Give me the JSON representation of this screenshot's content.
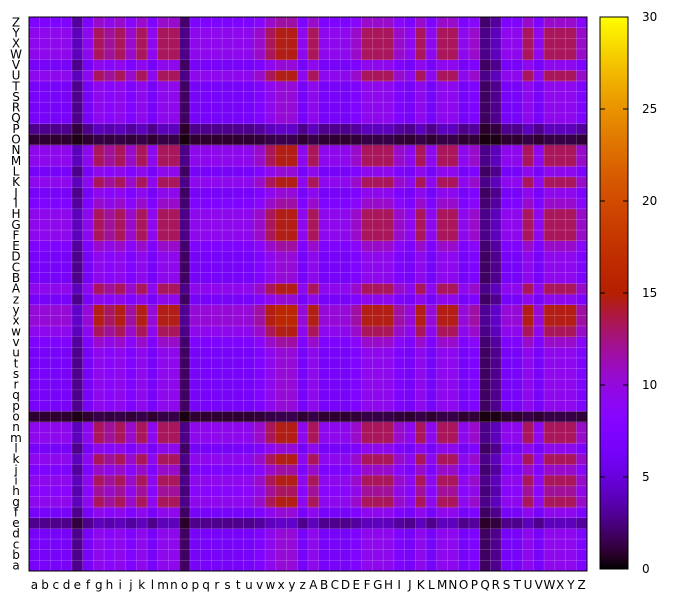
{
  "chart_data": {
    "type": "heatmap",
    "title": "",
    "xlabel": "",
    "ylabel": "",
    "x_labels": [
      "a",
      "b",
      "c",
      "d",
      "e",
      "f",
      "g",
      "h",
      "i",
      "j",
      "k",
      "l",
      "m",
      "n",
      "o",
      "p",
      "q",
      "r",
      "s",
      "t",
      "u",
      "v",
      "w",
      "x",
      "y",
      "z",
      "A",
      "B",
      "C",
      "D",
      "E",
      "F",
      "G",
      "H",
      "I",
      "J",
      "K",
      "L",
      "M",
      "N",
      "O",
      "P",
      "Q",
      "R",
      "S",
      "T",
      "U",
      "V",
      "W",
      "X",
      "Y",
      "Z"
    ],
    "y_labels": [
      "a",
      "b",
      "c",
      "d",
      "e",
      "f",
      "g",
      "h",
      "i",
      "j",
      "k",
      "l",
      "m",
      "n",
      "o",
      "p",
      "q",
      "r",
      "s",
      "t",
      "u",
      "v",
      "w",
      "x",
      "y",
      "z",
      "A",
      "B",
      "C",
      "D",
      "E",
      "F",
      "G",
      "H",
      "I",
      "J",
      "K",
      "L",
      "M",
      "N",
      "O",
      "P",
      "Q",
      "R",
      "S",
      "T",
      "U",
      "V",
      "W",
      "X",
      "Y",
      "Z"
    ],
    "column_weights": [
      7,
      7,
      7,
      7,
      3,
      7,
      10,
      9,
      10,
      8,
      10,
      7,
      10,
      10,
      2,
      7,
      7,
      7,
      7,
      7,
      7,
      8,
      10,
      11,
      11,
      7,
      10,
      7,
      7,
      7,
      8,
      10,
      10,
      10,
      8,
      7,
      10,
      7,
      10,
      10,
      7,
      8,
      2,
      3,
      7,
      7,
      10,
      7,
      10,
      10,
      10,
      8
    ],
    "row_weights": [
      7,
      7,
      7,
      7,
      3,
      7,
      10,
      9,
      10,
      8,
      10,
      7,
      10,
      10,
      1,
      7,
      7,
      7,
      7,
      7,
      7,
      8,
      10,
      11,
      11,
      7,
      10,
      7,
      7,
      7,
      8,
      10,
      10,
      10,
      8,
      7,
      10,
      7,
      10,
      10,
      1,
      3,
      7,
      7,
      7,
      7,
      10,
      7,
      10,
      10,
      10,
      8
    ],
    "values_formula": "value ≈ 6.5 × row_weight × column_weight / 49, clipped to color range",
    "cbrange": [
      0,
      30
    ],
    "colorbar_ticks": [
      0,
      5,
      10,
      15,
      20,
      25,
      30
    ],
    "colormap": "gnuplot (black-purple-red-yellow)",
    "grid": true,
    "legend": "colorbar right"
  },
  "colorbar": {
    "tick_labels": [
      "0",
      "5",
      "10",
      "15",
      "20",
      "25",
      "30"
    ]
  }
}
